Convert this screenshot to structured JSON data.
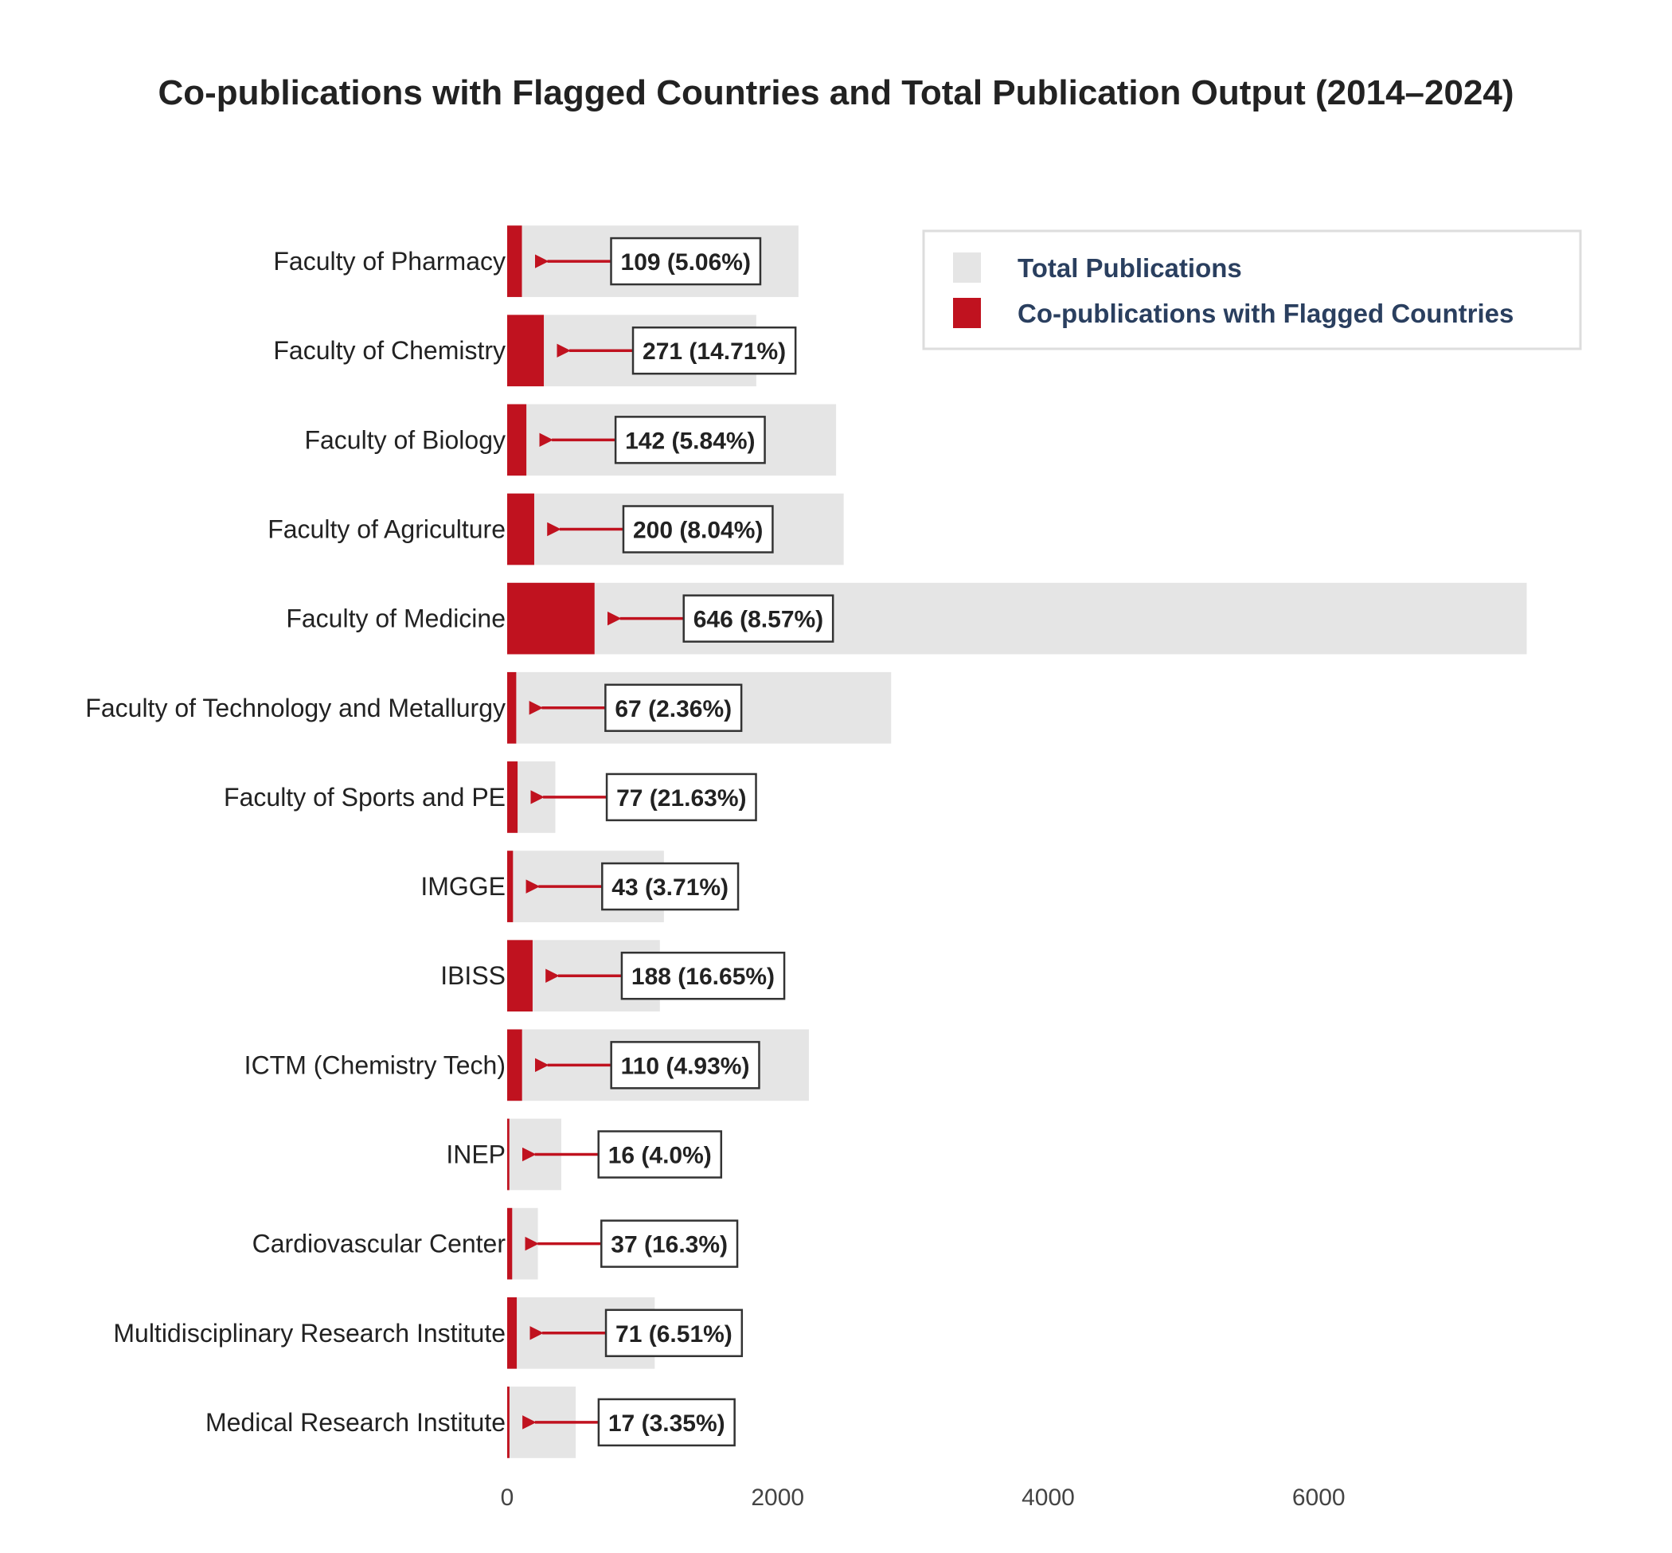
{
  "chart_data": {
    "type": "bar",
    "orientation": "horizontal",
    "barmode": "overlay",
    "title": "Co-publications with Flagged Countries and Total Publication Output (2014–2024)",
    "xlabel": "",
    "ylabel": "",
    "xlim": [
      0,
      7600
    ],
    "x_ticks": [
      0,
      2000,
      4000,
      6000
    ],
    "x_tick_labels": [
      "0",
      "2000",
      "4000",
      "6000"
    ],
    "grid": false,
    "legend_position": "top-right",
    "categories": [
      "Faculty of Pharmacy",
      "Faculty of Chemistry",
      "Faculty of Biology",
      "Faculty of Agriculture",
      "Faculty of Medicine",
      "Faculty of Technology and Metallurgy",
      "Faculty of Sports and PE",
      "IMGGE",
      "IBISS",
      "ICTM (Chemistry Tech)",
      "INEP",
      "Cardiovascular Center",
      "Multidisciplinary Research Institute",
      "Medical Research Institute"
    ],
    "series": [
      {
        "name": "Total Publications",
        "color": "#e5e5e5",
        "values": [
          2154,
          1842,
          2432,
          2488,
          7538,
          2839,
          356,
          1159,
          1129,
          2231,
          400,
          227,
          1091,
          507
        ]
      },
      {
        "name": "Co-publications with Flagged Countries",
        "color": "#c0121f",
        "values": [
          109,
          271,
          142,
          200,
          646,
          67,
          77,
          43,
          188,
          110,
          16,
          37,
          71,
          17
        ]
      }
    ],
    "annotations": [
      "109 (5.06%)",
      "271 (14.71%)",
      "142 (5.84%)",
      "200 (8.04%)",
      "646 (8.57%)",
      "67 (2.36%)",
      "77 (21.63%)",
      "43 (3.71%)",
      "188 (16.65%)",
      "110 (4.93%)",
      "16 (4.0%)",
      "37 (16.3%)",
      "71 (6.51%)",
      "17 (3.35%)"
    ]
  }
}
